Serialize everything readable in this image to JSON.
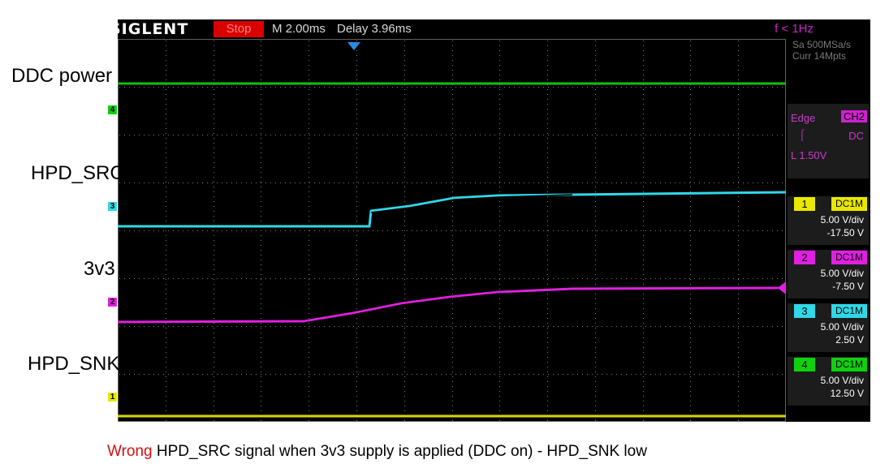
{
  "scope": {
    "brand": "SIGLENT",
    "run_state": "Stop",
    "timebase": "M 2.00ms",
    "delay": "Delay 3.96ms",
    "freq": "f < 1Hz",
    "sample_rate": "Sa 500MSa/s",
    "memory": "Curr 14Mpts",
    "trigger": {
      "type": "Edge",
      "source": "CH2",
      "coupling": "DC",
      "level": "L  1.50V"
    },
    "channels": [
      {
        "num": "1",
        "coupling": "DC1M",
        "vdiv": "5.00 V/div",
        "offset": "-17.50 V",
        "color": "#e8e800"
      },
      {
        "num": "2",
        "coupling": "DC1M",
        "vdiv": "5.00 V/div",
        "offset": "-7.50 V",
        "color": "#e020e0"
      },
      {
        "num": "3",
        "coupling": "DC1M",
        "vdiv": "5.00 V/div",
        "offset": "2.50 V",
        "color": "#30d8e8"
      },
      {
        "num": "4",
        "coupling": "DC1M",
        "vdiv": "5.00 V/div",
        "offset": "12.50 V",
        "color": "#10d010"
      }
    ]
  },
  "labels": {
    "ddc_power": "DDC power",
    "hpd_src": "HPD_SRC",
    "v3v3": "3v3",
    "hpd_snk": "HPD_SNK"
  },
  "markers": {
    "ch4": "4",
    "ch3": "3",
    "ch2": "2",
    "ch1": "1"
  },
  "caption": {
    "wrong": "Wrong",
    "rest": " HPD_SRC signal when 3v3 supply is applied (DDC on) - HPD_SNK low"
  }
}
